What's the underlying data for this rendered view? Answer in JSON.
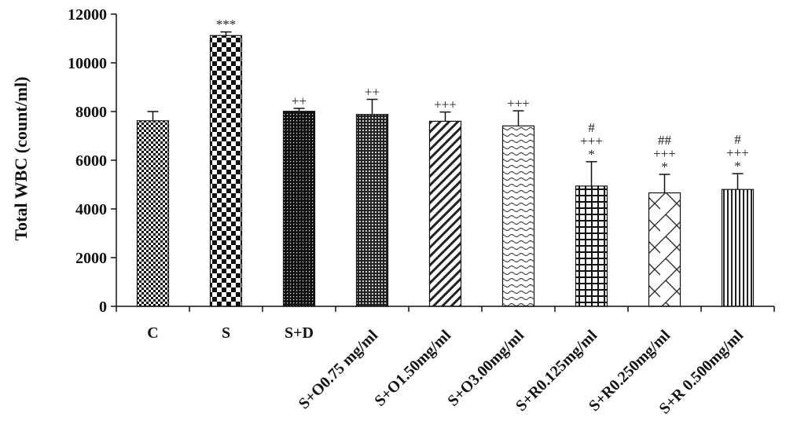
{
  "chart_data": {
    "type": "bar",
    "title": "",
    "xlabel": "",
    "ylabel": "Total WBC (count/ml)",
    "ylim": [
      0,
      12000
    ],
    "yticks": [
      "0",
      "2000",
      "4000",
      "6000",
      "8000",
      "10000",
      "12000"
    ],
    "grid": false,
    "categories": [
      "C",
      "S",
      "S+D",
      "S+O0.75 mg/ml",
      "S+O1.50mg/ml",
      "S+O3.00mg/ml",
      "S+R0.125mg/ml",
      "S+R0.250mg/ml",
      "S+R 0.500mg/ml"
    ],
    "values": [
      7620,
      11120,
      8010,
      7880,
      7600,
      7410,
      4940,
      4660,
      4800
    ],
    "errors": [
      380,
      150,
      120,
      620,
      380,
      620,
      1000,
      760,
      650
    ],
    "patterns": [
      "checker-small",
      "checker-large",
      "dots-dense",
      "dots-fine",
      "diagonal-down",
      "wave",
      "grid",
      "brick-diagonal",
      "vertical-lines"
    ],
    "annotations": [
      [],
      [
        "***"
      ],
      [
        "++"
      ],
      [
        "++"
      ],
      [
        "+++"
      ],
      [
        "+++"
      ],
      [
        "*",
        "+++",
        "#"
      ],
      [
        "*",
        "+++",
        "##"
      ],
      [
        "*",
        "+++",
        "#"
      ]
    ]
  }
}
